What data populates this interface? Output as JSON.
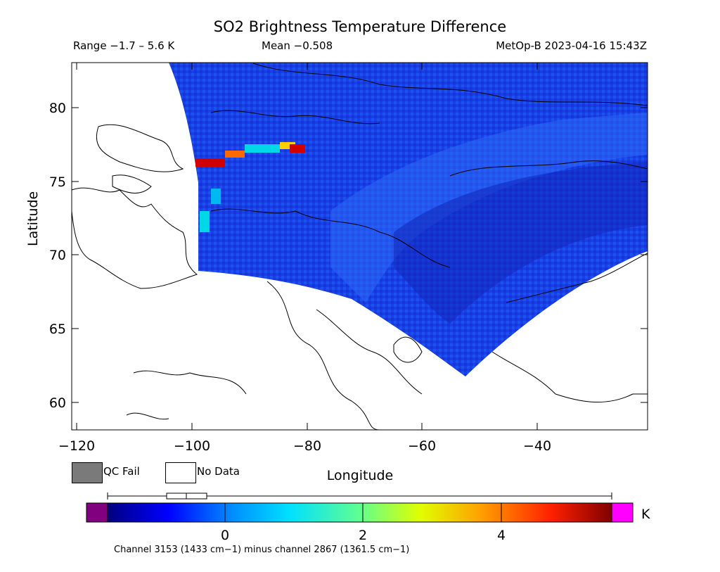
{
  "header": {
    "title": "SO2 Brightness Temperature Difference",
    "range": "Range −1.7 – 5.6 K",
    "mean": "Mean −0.508",
    "satellite_time": "MetOp-B 2023-04-16 15:43Z"
  },
  "axes": {
    "xlabel": "Longitude",
    "ylabel": "Latitude",
    "x_ticks": [
      "−120",
      "−100",
      "−80",
      "−60",
      "−40"
    ],
    "y_ticks": [
      "80",
      "75",
      "70",
      "65",
      "60"
    ]
  },
  "legend": {
    "qc_fail_label": "QC Fail",
    "no_data_label": "No Data",
    "qc_fail_color": "#7a7a7a",
    "no_data_color": "#ffffff"
  },
  "colorbar": {
    "ticks": [
      "0",
      "2",
      "4"
    ],
    "unit": "K",
    "min": -1.7,
    "max": 5.6,
    "under_color": "#800080",
    "over_color": "#ff00ff",
    "stops": [
      "#000080",
      "#0000ff",
      "#0090ff",
      "#00e0ff",
      "#60ff90",
      "#e0ff00",
      "#ffa000",
      "#ff2000",
      "#800000"
    ]
  },
  "footnote": "Channel 3153 (1433 cm−1) minus channel 2867 (1361.5 cm−1)",
  "colors": {
    "background": "#ffffff",
    "swath_base": "#1a3de0",
    "hotspot": "#d00000"
  }
}
